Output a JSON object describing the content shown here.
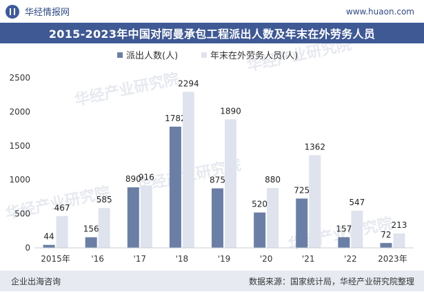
{
  "header": {
    "brand": "华经情报网",
    "url": "www.huaon.com"
  },
  "footer": {
    "left": "企业出海咨询",
    "right": "数据来源：国家统计局，华经产业研究院整理"
  },
  "watermark": "华经产业研究院",
  "colors": {
    "series1": "#6b7fa6",
    "series2": "#dee3ee",
    "title_bg": "#3f5995",
    "axis": "#c9cdd6"
  },
  "chart_data": {
    "type": "bar",
    "title": "2015-2023年中国对阿曼承包工程派出人数及年末在外劳务人员",
    "categories": [
      "2015年",
      "'16",
      "'17",
      "'18",
      "'19",
      "'20",
      "'21",
      "'22",
      "2023年"
    ],
    "series": [
      {
        "name": "派出人数(人)",
        "values": [
          44,
          156,
          890,
          1782,
          875,
          520,
          725,
          157,
          72
        ]
      },
      {
        "name": "年末在外劳务人员(人)",
        "values": [
          467,
          585,
          916,
          2294,
          1890,
          880,
          1362,
          547,
          213
        ]
      }
    ],
    "yticks": [
      0,
      500,
      1000,
      1500,
      2000,
      2500
    ],
    "ylim": [
      0,
      2500
    ],
    "legend": "top-center",
    "grid": false
  }
}
